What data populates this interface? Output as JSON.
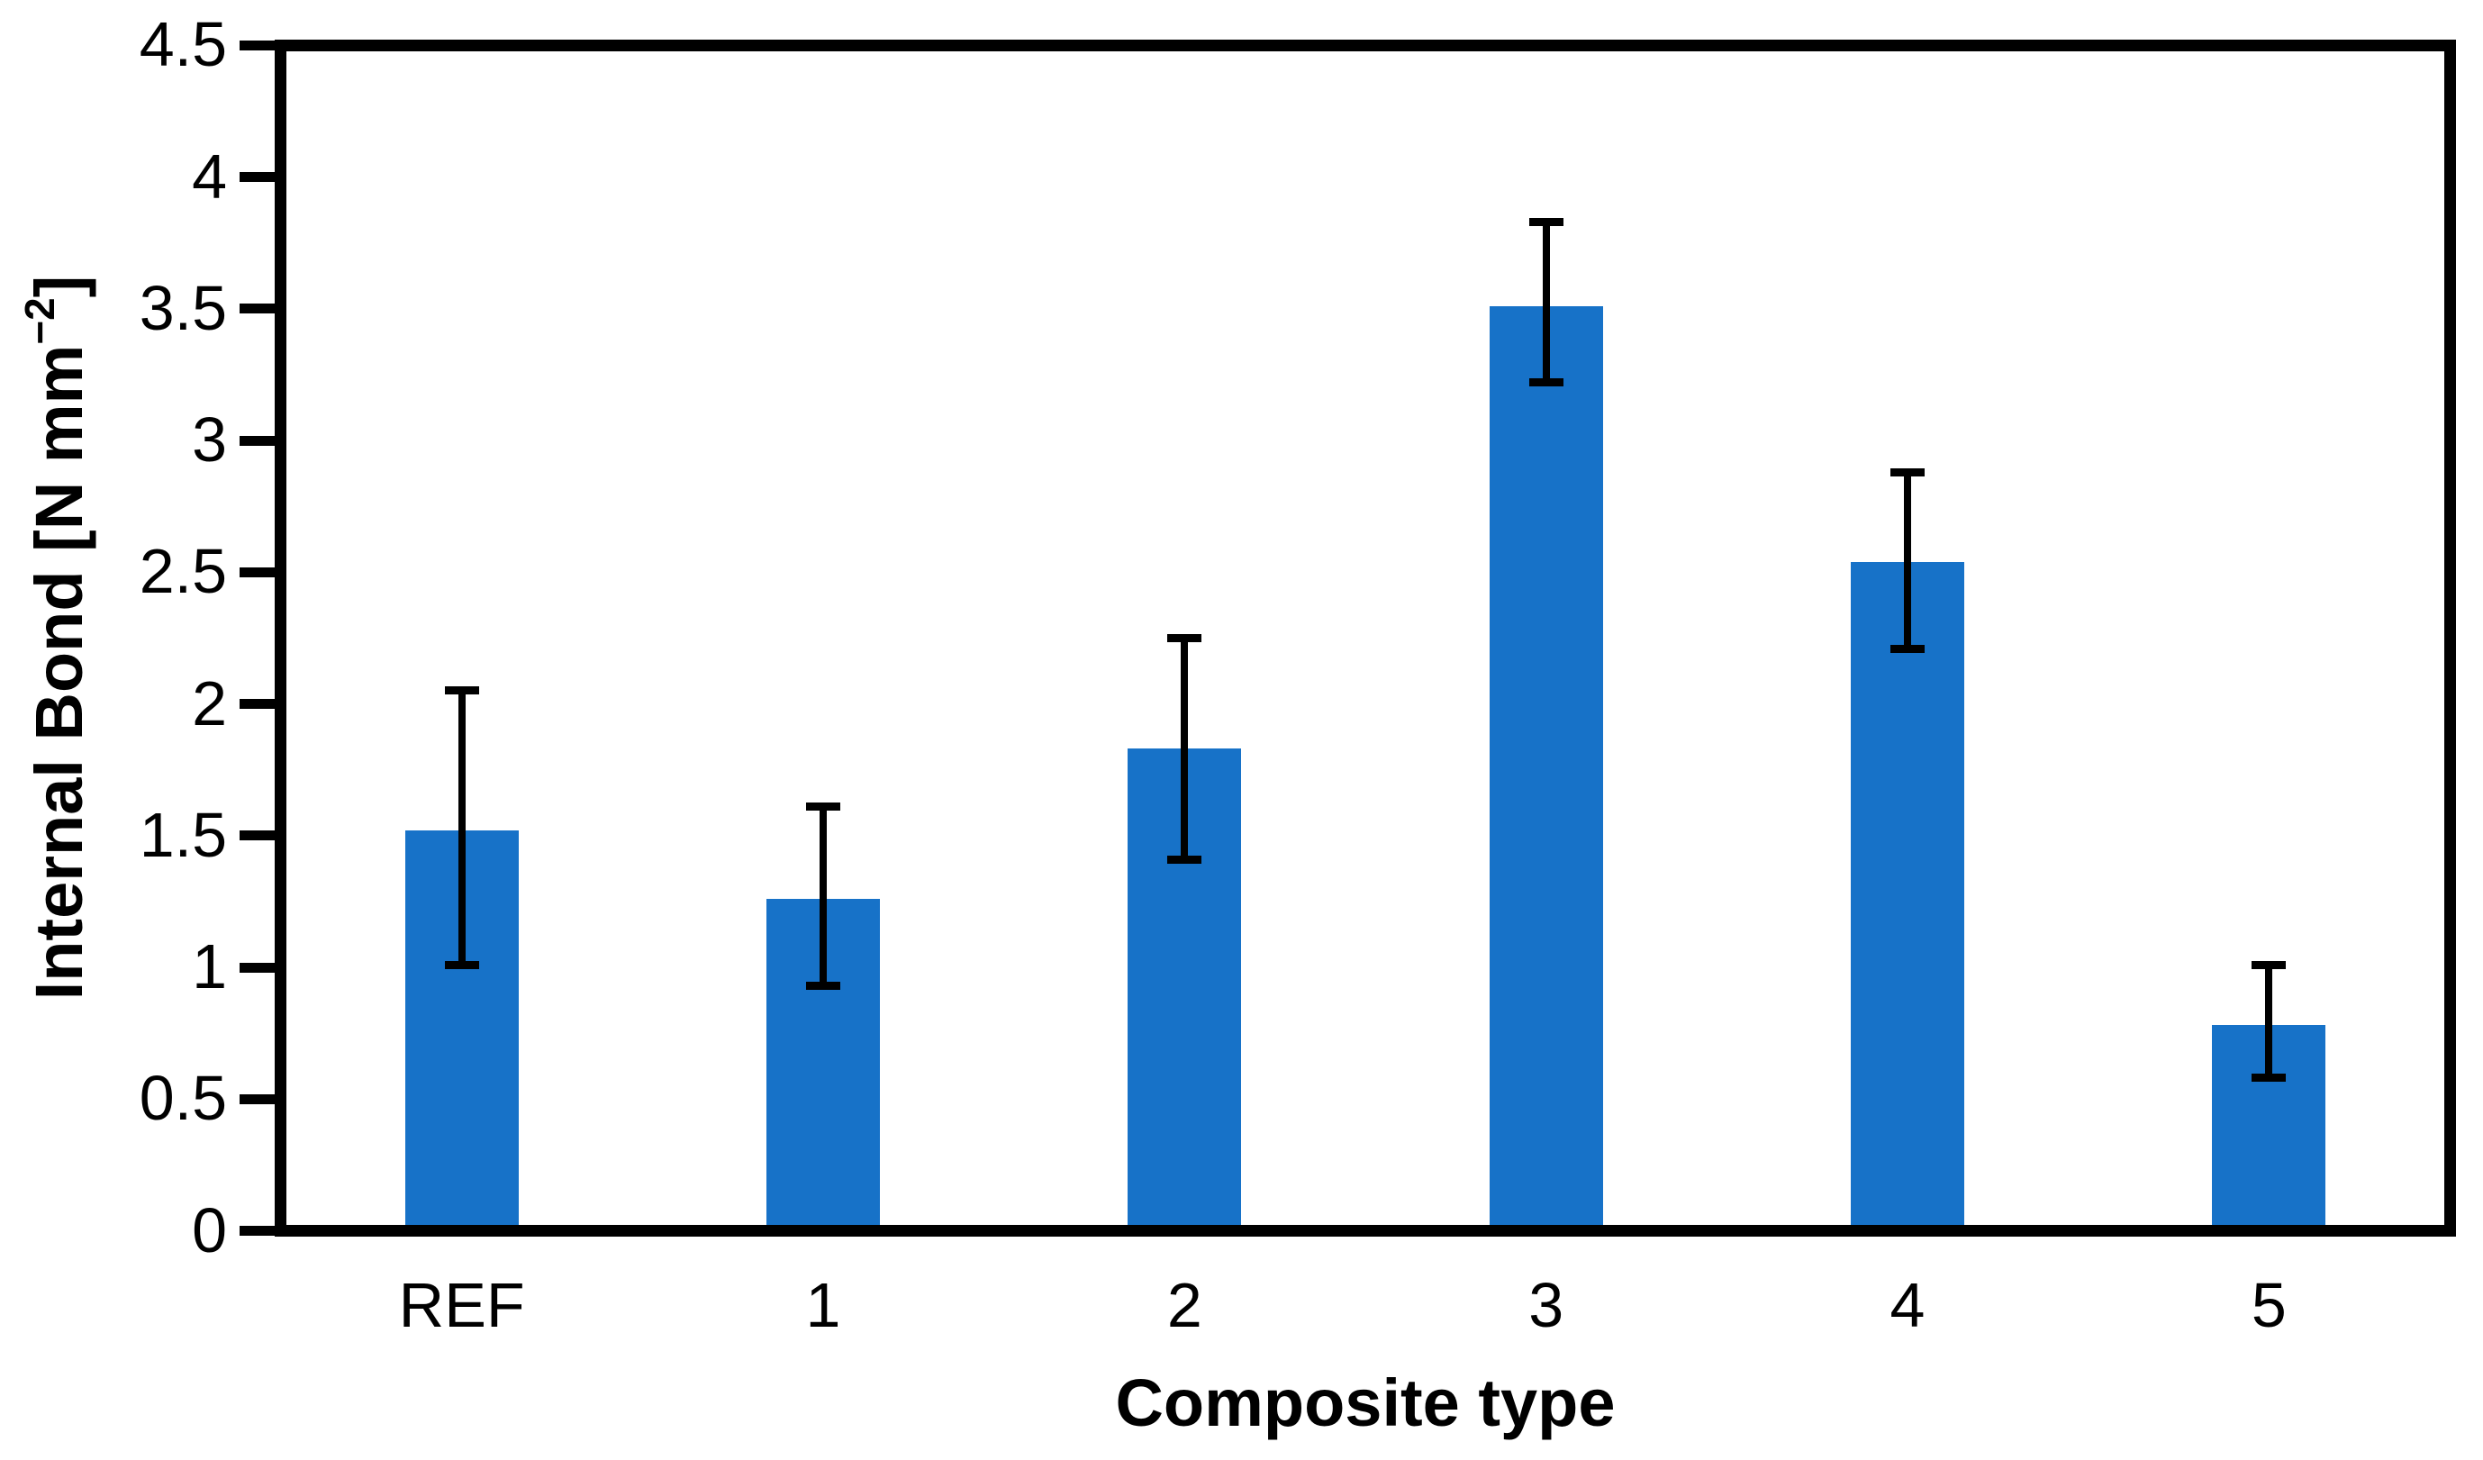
{
  "chart_data": {
    "type": "bar",
    "title": "",
    "xlabel": "Composite type",
    "ylabel": "Internal Bond [N mm⁻²]",
    "ylabel_parts": {
      "prefix": "Internal Bond [N mm",
      "sup": "−2",
      "suffix": "]"
    },
    "categories": [
      "REF",
      "1",
      "2",
      "3",
      "4",
      "5"
    ],
    "values": [
      1.52,
      1.26,
      1.83,
      3.51,
      2.54,
      0.78
    ],
    "error_upper": [
      2.05,
      1.61,
      2.25,
      3.83,
      2.88,
      1.01
    ],
    "error_lower": [
      1.01,
      0.93,
      1.41,
      3.22,
      2.21,
      0.58
    ],
    "ylim": [
      0,
      4.5
    ],
    "ytick_step": 0.5,
    "ytick_labels": [
      "0",
      "0.5",
      "1",
      "1.5",
      "2",
      "2.5",
      "3",
      "3.5",
      "4",
      "4.5"
    ],
    "bar_color": "#1772C8",
    "axis_color": "#000000",
    "background_color": "#FFFFFF",
    "grid": false,
    "legend": "none",
    "frame": true
  }
}
